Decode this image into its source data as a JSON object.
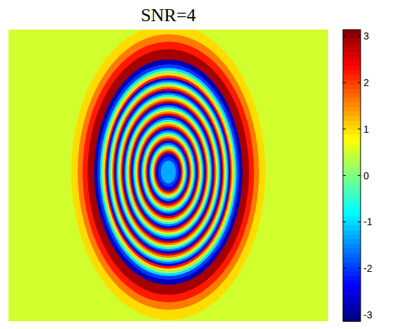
{
  "chart_data": {
    "type": "heatmap",
    "title": "SNR=4",
    "xlim": [
      0,
      128
    ],
    "ylim": [
      0,
      128
    ],
    "tick_labels": false,
    "center": [
      64,
      62.5
    ],
    "background": 0.5,
    "rings": {
      "rx": [
        38.9,
        36.3,
        34.3,
        32.3,
        29.7,
        28.4,
        27.4,
        26.7,
        26.1,
        25.4,
        24.8,
        24.2,
        23.7,
        23.1,
        22.5,
        22.0,
        21.5,
        20.9,
        20.4,
        19.8,
        19.2,
        18.7,
        18.2,
        17.6,
        17.1,
        16.5,
        15.9,
        15.4,
        14.9,
        14.3,
        13.8,
        13.2,
        12.6,
        12.1,
        11.6,
        11.0,
        10.5,
        9.9,
        9.3,
        8.8,
        8.3,
        7.7,
        7.2,
        6.6,
        6.0,
        5.5,
        5.0,
        4.0,
        3.0
      ],
      "ry": [
        64.9,
        60.5,
        57.2,
        53.9,
        49.5,
        47.3,
        45.7,
        44.6,
        43.5,
        42.4,
        41.3,
        40.3,
        39.4,
        38.5,
        37.6,
        36.7,
        35.8,
        34.8,
        33.9,
        33.0,
        32.1,
        31.2,
        30.3,
        29.3,
        28.4,
        27.5,
        26.6,
        25.7,
        24.8,
        23.8,
        22.9,
        22.0,
        21.1,
        20.2,
        19.3,
        18.3,
        17.4,
        16.5,
        15.6,
        14.7,
        13.8,
        12.8,
        11.9,
        11.0,
        10.1,
        9.2,
        8.3,
        6.6,
        5.0
      ],
      "values": [
        1.0,
        1.6,
        2.2,
        2.9,
        -2.8,
        -2.0,
        -1.0,
        0.0,
        1.0,
        2.2,
        -2.6,
        -1.6,
        -0.5,
        0.5,
        1.6,
        2.6,
        -2.6,
        -1.6,
        -0.5,
        0.5,
        1.6,
        2.6,
        -2.6,
        -1.6,
        -0.5,
        0.5,
        1.6,
        2.6,
        -2.6,
        -1.6,
        -0.5,
        0.5,
        1.6,
        2.6,
        -2.6,
        -1.6,
        -0.5,
        0.5,
        1.6,
        2.6,
        -2.6,
        -1.6,
        -0.5,
        0.5,
        1.6,
        2.6,
        -2.6,
        -2.0,
        -1.3
      ]
    },
    "colorbar": {
      "range": [
        -3.1416,
        3.1416
      ],
      "ticks": [
        -3,
        -2,
        -1,
        0,
        1,
        2,
        3
      ]
    }
  }
}
